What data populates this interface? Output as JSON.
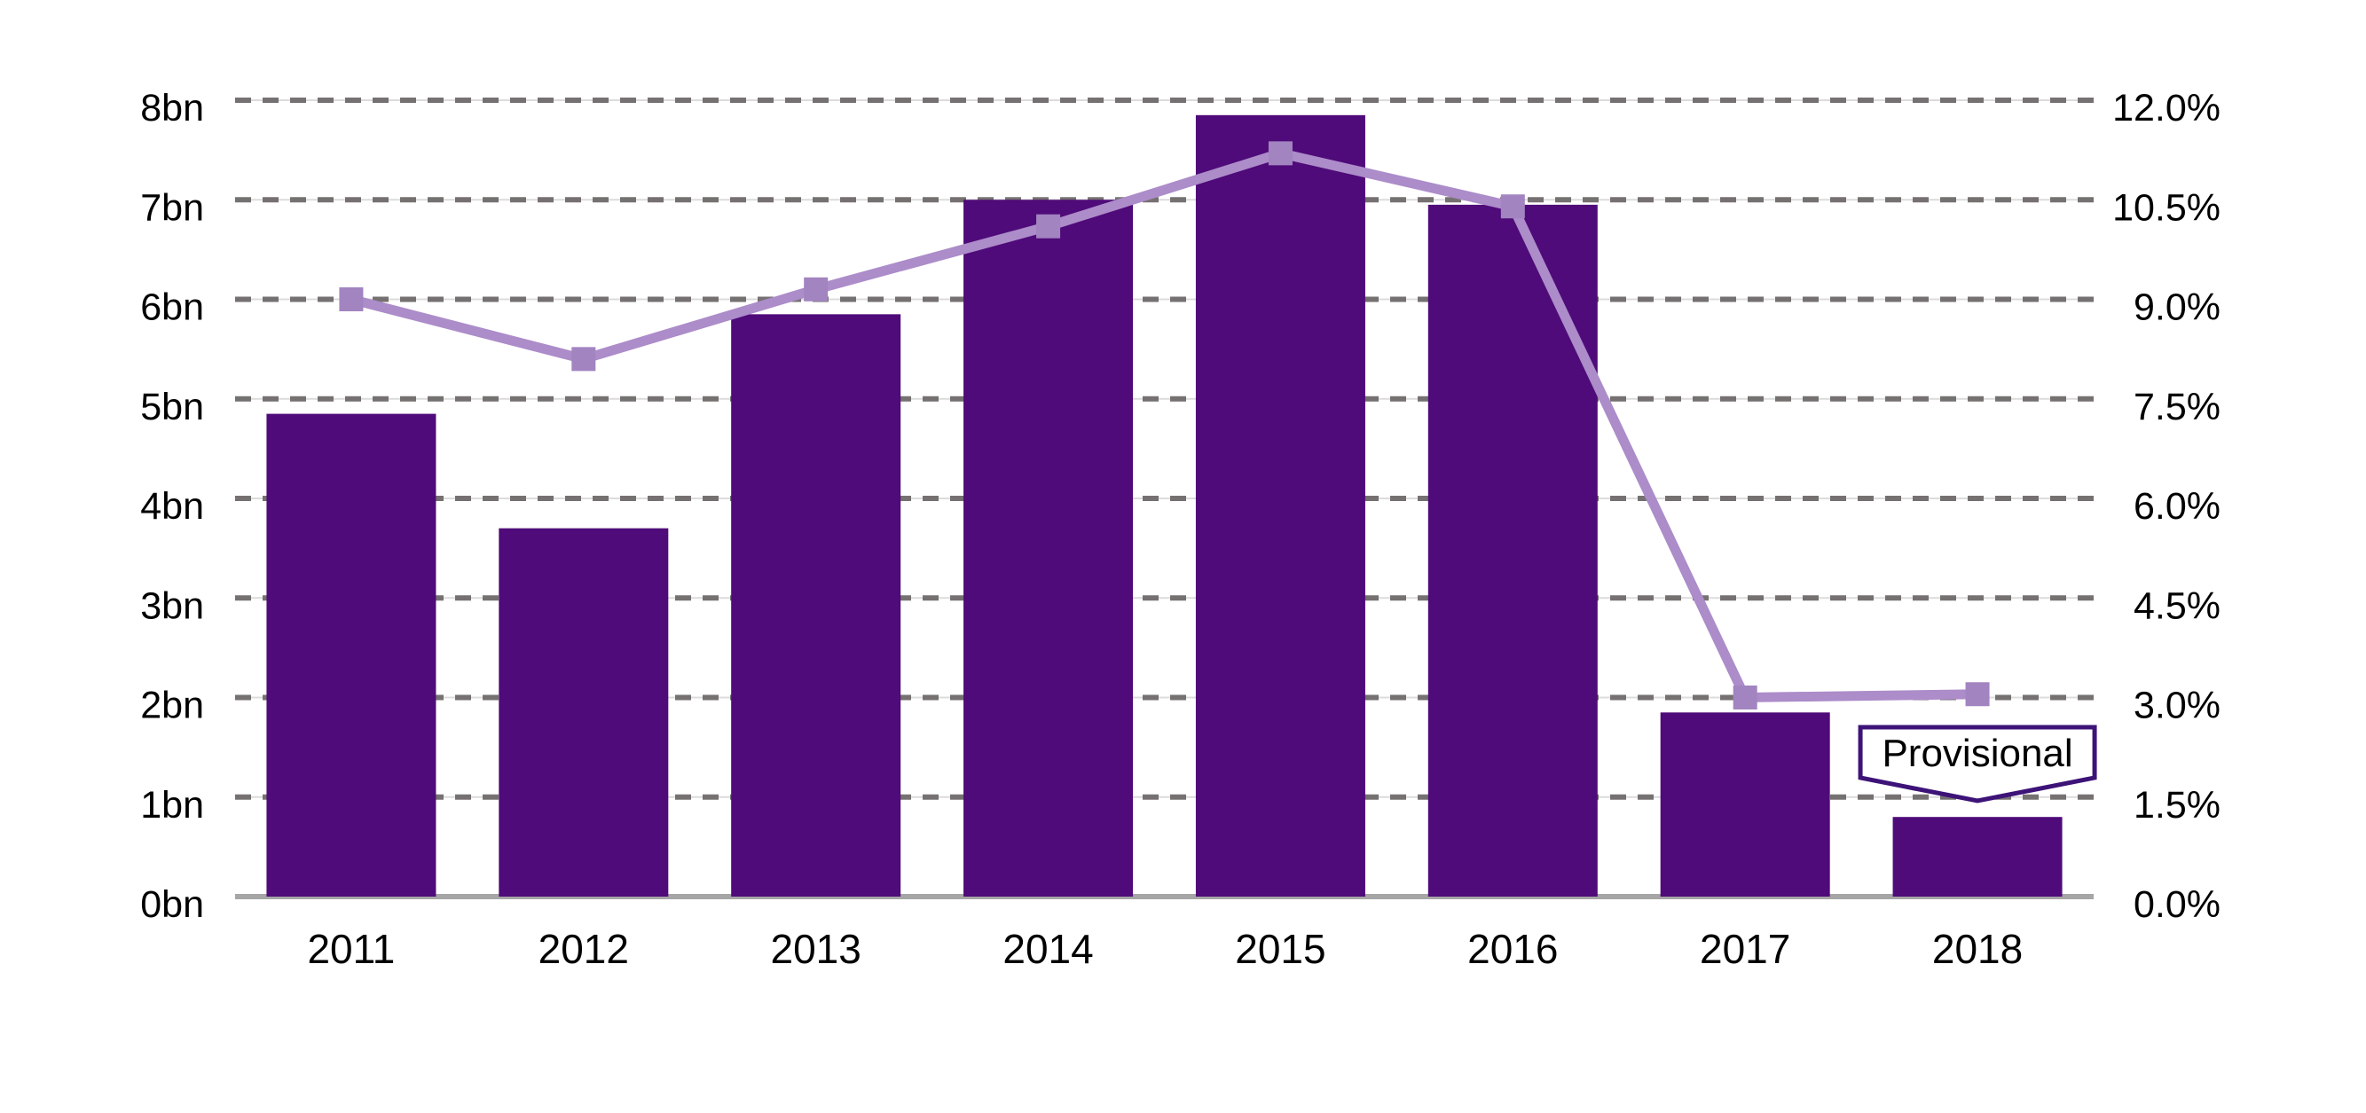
{
  "chart_data": {
    "type": "bar",
    "combo": "bar+line",
    "title": "",
    "legend": "none",
    "categories": [
      "2011",
      "2012",
      "2013",
      "2014",
      "2015",
      "2016",
      "2017",
      "2018"
    ],
    "series": [
      {
        "name": "bars_bn",
        "type": "bar",
        "axis": "left",
        "unit": "bn",
        "values": [
          4.85,
          3.7,
          5.85,
          7.0,
          7.85,
          6.95,
          1.85,
          0.8
        ]
      },
      {
        "name": "line_pct",
        "type": "line",
        "axis": "right",
        "unit": "%",
        "marker": "square",
        "values": [
          9.0,
          8.1,
          9.15,
          10.1,
          11.2,
          10.4,
          3.0,
          3.05
        ]
      }
    ],
    "left_axis": {
      "min": 0,
      "max": 8,
      "step": 1,
      "ticks": [
        "0bn",
        "1bn",
        "2bn",
        "3bn",
        "4bn",
        "5bn",
        "6bn",
        "7bn",
        "8bn"
      ]
    },
    "right_axis": {
      "min": 0,
      "max": 12,
      "step": 1.5,
      "ticks": [
        "0.0%",
        "1.5%",
        "3.0%",
        "4.5%",
        "6.0%",
        "7.5%",
        "9.0%",
        "10.5%",
        "12.0%"
      ]
    },
    "annotation": {
      "text": "Provisional",
      "target_category": "2018"
    },
    "grid": {
      "horizontal": true,
      "style": "dashed"
    },
    "colors": {
      "bar": "#4F0B79",
      "line": "#AC8CC9",
      "marker": "#A284C0",
      "grid_dash": "#767171",
      "grid_faint": "#DCDCDC",
      "axis_line": "#A6A6A6",
      "annotation_border": "#3D1378",
      "annotation_fill": "#FFFFFF",
      "text": "#000000",
      "background": "#FFFFFF"
    }
  }
}
